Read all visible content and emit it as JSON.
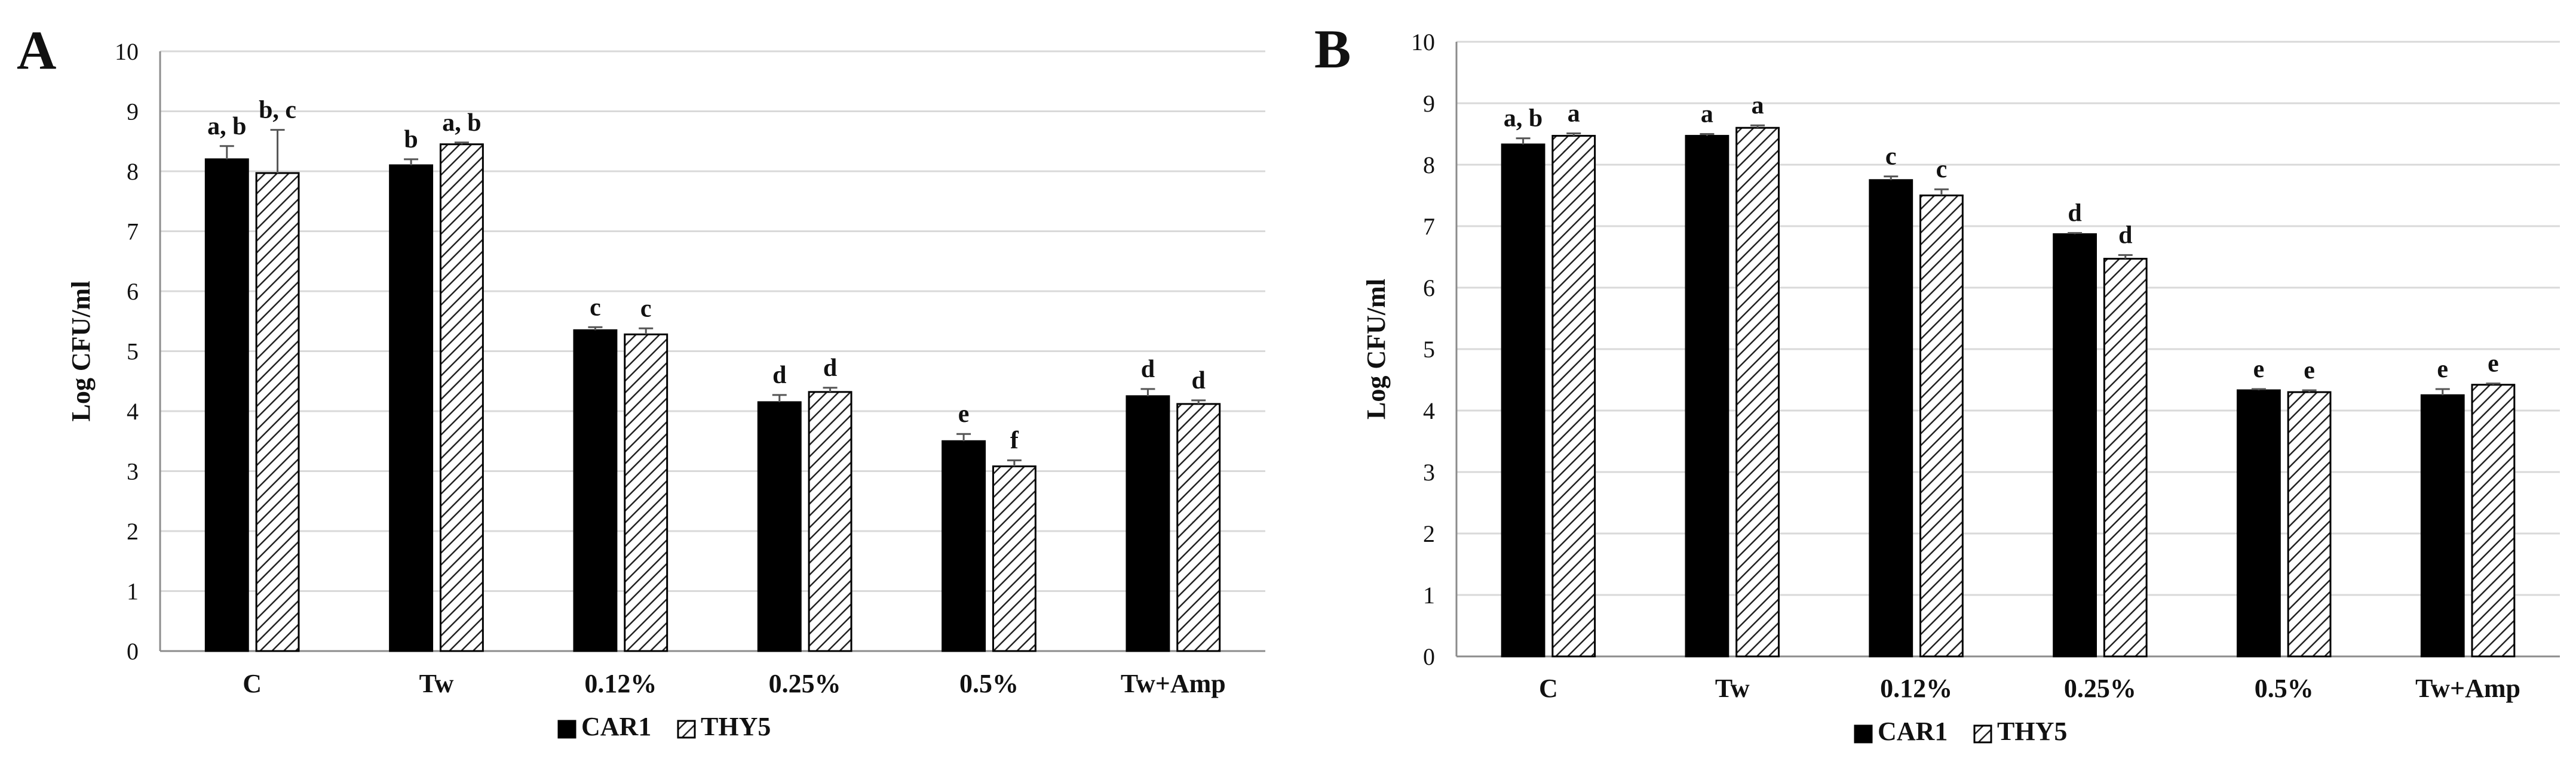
{
  "chart_data": [
    {
      "panel_label": "A",
      "type": "bar",
      "title": "",
      "xlabel": "",
      "ylabel": "Log CFU/ml",
      "ylim": [
        0,
        10
      ],
      "yticks": [
        0,
        1,
        2,
        3,
        4,
        5,
        6,
        7,
        8,
        9,
        10
      ],
      "grid": true,
      "legend_position": "bottom-center",
      "categories": [
        "C",
        "Tw",
        "0.12%",
        "0.25%",
        "0.5%",
        "Tw+Amp"
      ],
      "series": [
        {
          "name": "CAR1",
          "fill": "solid",
          "color": "#000000",
          "values": [
            8.2,
            8.1,
            5.35,
            4.15,
            3.5,
            4.25
          ],
          "errors": [
            0.22,
            0.1,
            0.05,
            0.12,
            0.12,
            0.12
          ],
          "labels": [
            "a, b",
            "b",
            "c",
            "d",
            "e",
            "d"
          ]
        },
        {
          "name": "THY5",
          "fill": "hatched",
          "color": "#000000",
          "values": [
            7.97,
            8.45,
            5.28,
            4.32,
            3.08,
            4.12
          ],
          "errors": [
            0.72,
            0.03,
            0.1,
            0.07,
            0.1,
            0.06
          ],
          "labels": [
            "b, c",
            "a, b",
            "c",
            "d",
            "f",
            "d"
          ]
        }
      ]
    },
    {
      "panel_label": "B",
      "type": "bar",
      "title": "",
      "xlabel": "",
      "ylabel": "Log CFU/ml",
      "ylim": [
        0,
        10
      ],
      "yticks": [
        0,
        1,
        2,
        3,
        4,
        5,
        6,
        7,
        8,
        9,
        10
      ],
      "grid": true,
      "legend_position": "bottom-center",
      "categories": [
        "C",
        "Tw",
        "0.12%",
        "0.25%",
        "0.5%",
        "Tw+Amp"
      ],
      "series": [
        {
          "name": "CAR1",
          "fill": "solid",
          "color": "#000000",
          "values": [
            8.33,
            8.47,
            7.75,
            6.87,
            4.33,
            4.25
          ],
          "errors": [
            0.1,
            0.03,
            0.06,
            0.02,
            0.02,
            0.1
          ],
          "labels": [
            "a, b",
            "a",
            "c",
            "d",
            "e",
            "e"
          ]
        },
        {
          "name": "THY5",
          "fill": "hatched",
          "color": "#000000",
          "values": [
            8.47,
            8.6,
            7.5,
            6.47,
            4.3,
            4.42
          ],
          "errors": [
            0.04,
            0.04,
            0.1,
            0.06,
            0.03,
            0.02
          ],
          "labels": [
            "a",
            "a",
            "c",
            "d",
            "e",
            "e"
          ]
        }
      ]
    }
  ]
}
